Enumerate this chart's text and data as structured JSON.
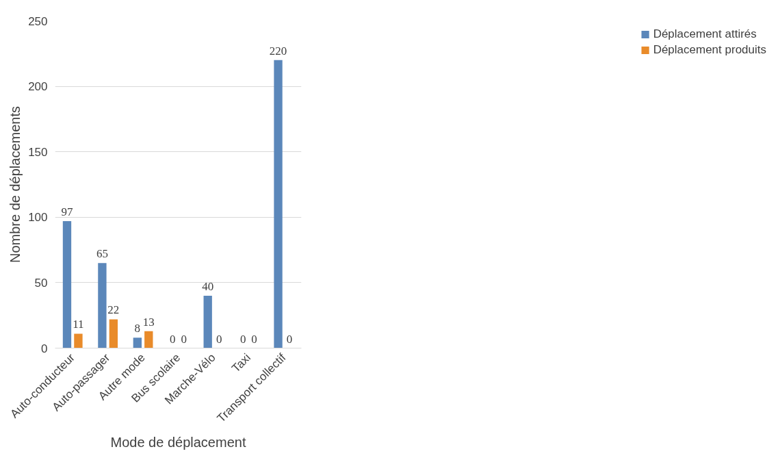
{
  "chart_data": {
    "type": "bar",
    "xlabel": "Mode de déplacement",
    "ylabel": "Nombre de déplacements",
    "categories": [
      "Auto-conducteur",
      "Auto-passager",
      "Autre mode",
      "Bus scolaire",
      "Marche-Vélo",
      "Taxi",
      "Transport collectif"
    ],
    "series": [
      {
        "name": "Déplacement attirés",
        "color": "#5b87ba",
        "values": [
          97,
          65,
          8,
          0,
          40,
          0,
          220
        ]
      },
      {
        "name": "Déplacement produits",
        "color": "#e98b2a",
        "values": [
          11,
          22,
          13,
          0,
          0,
          0,
          0
        ]
      }
    ],
    "ylim": [
      0,
      250
    ],
    "yticks": [
      0,
      50,
      100,
      150,
      200,
      250
    ],
    "grid": "y",
    "legend": "right",
    "data_labels": true
  }
}
